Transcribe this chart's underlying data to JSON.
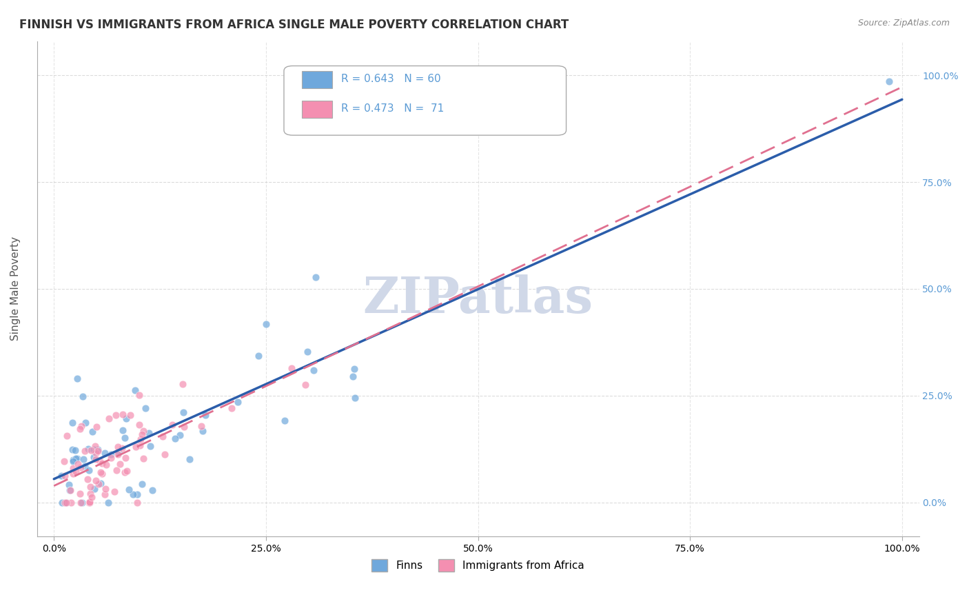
{
  "title": "FINNISH VS IMMIGRANTS FROM AFRICA SINGLE MALE POVERTY CORRELATION CHART",
  "source": "Source: ZipAtlas.com",
  "ylabel": "Single Male Poverty",
  "xlabel_ticks": [
    "0.0%",
    "100.0%"
  ],
  "ylabel_ticks": [
    "0.0%",
    "25.0%",
    "50.0%",
    "75.0%",
    "100.0%"
  ],
  "legend_entries": [
    {
      "label": "Finns",
      "color": "#92b4e3",
      "R": 0.643,
      "N": 60
    },
    {
      "label": "Immigrants from Africa",
      "color": "#f4a0b0",
      "R": 0.473,
      "N": 71
    }
  ],
  "finns_color": "#6fa8dc",
  "africa_color": "#f48fb1",
  "finns_line_color": "#2b5daa",
  "africa_line_color": "#e07090",
  "background_color": "#ffffff",
  "grid_color": "#cccccc",
  "title_color": "#333333",
  "watermark_text": "ZIPatlas",
  "watermark_color": "#d0d8e8",
  "right_tick_color": "#5b9bd5",
  "seed": 42,
  "finns_R": 0.643,
  "finns_N": 60,
  "africa_R": 0.473,
  "africa_N": 71,
  "xlim": [
    0.0,
    1.0
  ],
  "ylim": [
    -0.05,
    1.05
  ]
}
